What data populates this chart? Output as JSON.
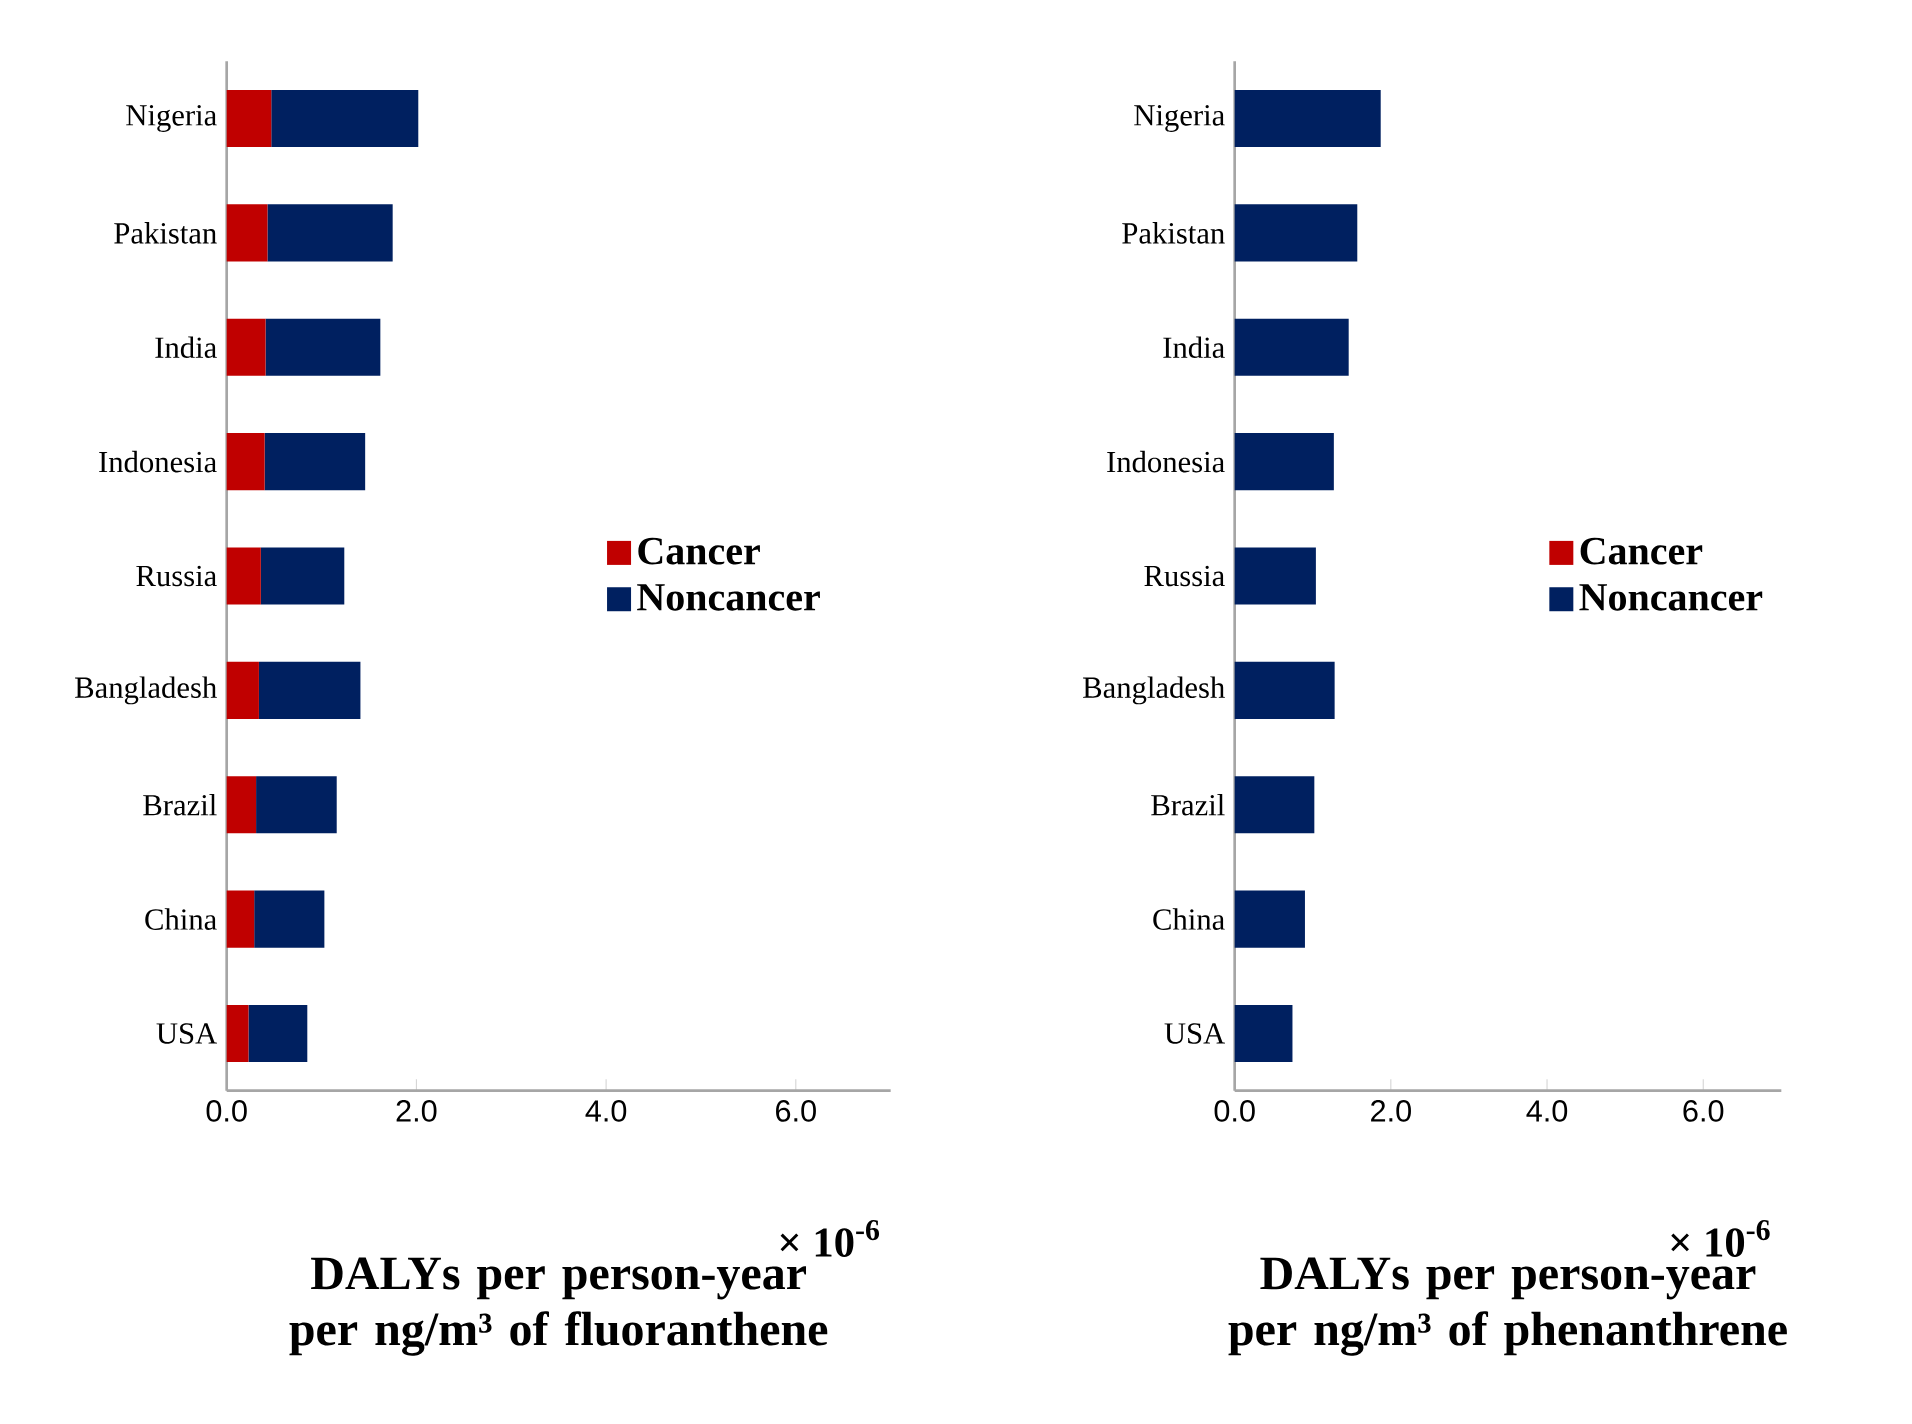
{
  "chart_data": [
    {
      "type": "bar",
      "orientation": "horizontal",
      "stacked": true,
      "xlabel": "DALYs per person-year per ng/m³ of fluoranthene",
      "categories": [
        "Nigeria",
        "Pakistan",
        "India",
        "Indonesia",
        "Russia",
        "Bangladesh",
        "Brazil",
        "China",
        "USA"
      ],
      "series": [
        {
          "name": "Cancer",
          "color": "#c00000",
          "values": [
            0.47,
            0.43,
            0.41,
            0.4,
            0.36,
            0.34,
            0.31,
            0.29,
            0.23
          ]
        },
        {
          "name": "Noncancer",
          "color": "#002060",
          "values": [
            1.55,
            1.32,
            1.21,
            1.06,
            0.88,
            1.07,
            0.85,
            0.74,
            0.62
          ]
        }
      ],
      "xlim": [
        0,
        7
      ],
      "xticks": [
        {
          "value": 0,
          "label": "0.0"
        },
        {
          "value": 2,
          "label": "2.0"
        },
        {
          "value": 4,
          "label": "4.0"
        },
        {
          "value": 6,
          "label": "6.0"
        }
      ],
      "legend": "right",
      "annotations": [
        "× 10$^{-6}$"
      ]
    },
    {
      "type": "bar",
      "orientation": "horizontal",
      "stacked": true,
      "xlabel": "DALYs per person-year per ng/m³ of phenanthrene",
      "categories": [
        "Nigeria",
        "Pakistan",
        "India",
        "Indonesia",
        "Russia",
        "Bangladesh",
        "Brazil",
        "China",
        "USA"
      ],
      "series": [
        {
          "name": "Cancer",
          "color": "#c00000",
          "values": [
            0,
            0,
            0,
            0,
            0,
            0,
            0,
            0,
            0
          ]
        },
        {
          "name": "Noncancer",
          "color": "#002060",
          "values": [
            1.87,
            1.57,
            1.46,
            1.27,
            1.04,
            1.28,
            1.02,
            0.9,
            0.74
          ]
        }
      ],
      "xlim": [
        0,
        7
      ],
      "xticks": [
        {
          "value": 0,
          "label": "0.0"
        },
        {
          "value": 2,
          "label": "2.0"
        },
        {
          "value": 4,
          "label": "4.0"
        },
        {
          "value": 6,
          "label": "6.0"
        }
      ],
      "legend": "right",
      "annotations": [
        "× 10$^{-6}$"
      ]
    }
  ]
}
